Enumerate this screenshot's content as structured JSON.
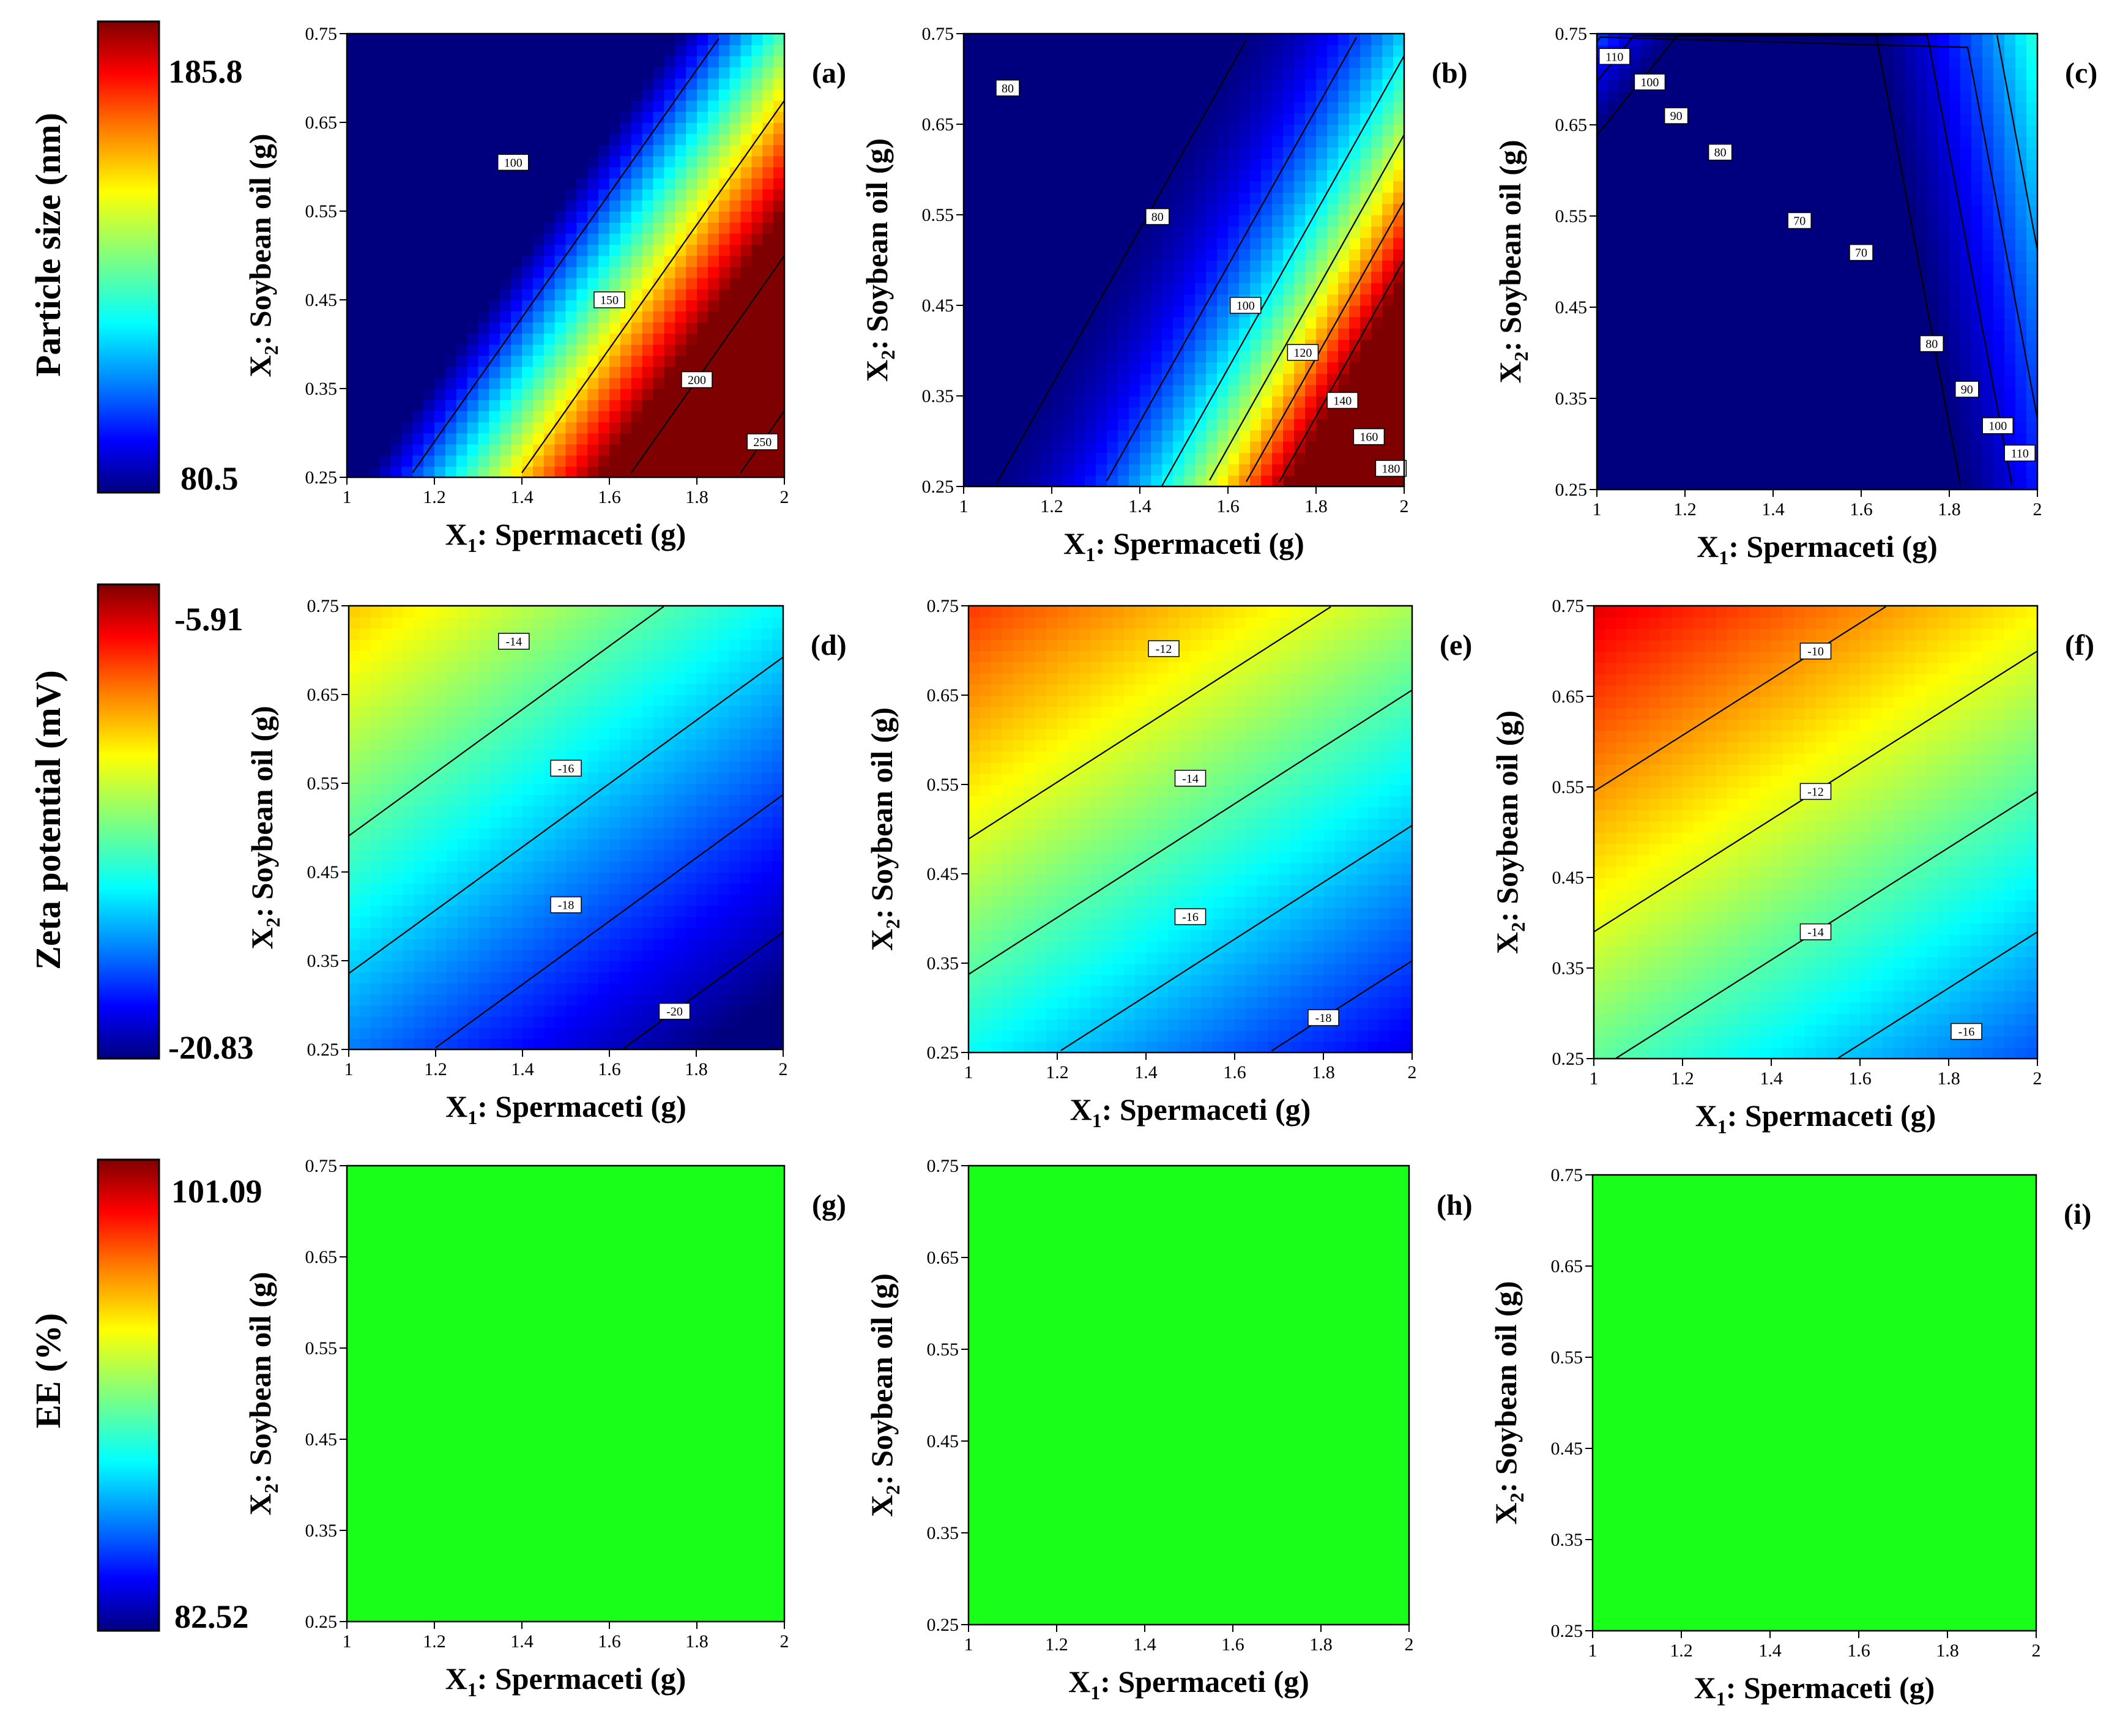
{
  "figure": {
    "x_label_prefix": "X",
    "x_label_sub": "1",
    "x_label_text": ": Spermaceti (g)",
    "y_label_prefix": "X",
    "y_label_sub": "2",
    "y_label_text": ": Soybean oil (g)",
    "x_ticks": [
      "1",
      "1.2",
      "1.4",
      "1.6",
      "1.8",
      "2"
    ],
    "y_ticks": [
      "0.25",
      "0.35",
      "0.45",
      "0.55",
      "0.65",
      "0.75"
    ]
  },
  "rows": [
    {
      "label": "Particle size (nm)",
      "scale_max": "185.8",
      "scale_min": "80.5"
    },
    {
      "label": "Zeta potential (mV)",
      "scale_max": "-5.91",
      "scale_min": "-20.83"
    },
    {
      "label": "EE (%)",
      "scale_max": "101.09",
      "scale_min": "82.52"
    }
  ],
  "colors": {
    "jet": [
      "#00007f",
      "#0000ff",
      "#007fff",
      "#00ffff",
      "#7fff7f",
      "#ffff00",
      "#ff7f00",
      "#ff0000",
      "#7f0000"
    ],
    "ee_fill": "#1aff1a"
  },
  "chart_data": [
    {
      "type": "heatmap",
      "panel": "(a)",
      "xlim": [
        1,
        2
      ],
      "ylim": [
        0.25,
        0.75
      ],
      "model": "ps_a",
      "contours": [
        {
          "label": "100",
          "level": 100,
          "at": [
            1.38,
            0.605
          ]
        },
        {
          "label": "150",
          "level": 150,
          "at": [
            1.6,
            0.45
          ]
        },
        {
          "label": "200",
          "level": 200,
          "at": [
            1.8,
            0.36
          ]
        },
        {
          "label": "250",
          "level": 250,
          "at": [
            1.95,
            0.29
          ]
        }
      ]
    },
    {
      "type": "heatmap",
      "panel": "(b)",
      "xlim": [
        1,
        2
      ],
      "ylim": [
        0.25,
        0.75
      ],
      "model": "ps_b",
      "contours": [
        {
          "label": "80",
          "level": 79,
          "at": [
            1.1,
            0.69
          ]
        },
        {
          "label": "80",
          "level": 81,
          "at": [
            1.44,
            0.548
          ]
        },
        {
          "label": "100",
          "level": 100,
          "at": [
            1.64,
            0.45
          ]
        },
        {
          "label": "120",
          "level": 120,
          "at": [
            1.77,
            0.398
          ]
        },
        {
          "label": "140",
          "level": 140,
          "at": [
            1.86,
            0.345
          ]
        },
        {
          "label": "160",
          "level": 160,
          "at": [
            1.92,
            0.305
          ]
        },
        {
          "label": "180",
          "level": 180,
          "at": [
            1.97,
            0.27
          ]
        }
      ]
    },
    {
      "type": "heatmap",
      "panel": "(c)",
      "xlim": [
        1,
        2
      ],
      "ylim": [
        0.25,
        0.75
      ],
      "model": "ps_c",
      "contours": [
        {
          "label": "110",
          "level": 110,
          "at": [
            1.04,
            0.725
          ]
        },
        {
          "label": "100",
          "level": 100,
          "at": [
            1.12,
            0.697
          ]
        },
        {
          "label": "90",
          "level": 90,
          "at": [
            1.18,
            0.66
          ]
        },
        {
          "label": "80",
          "level": 80,
          "at": [
            1.28,
            0.62
          ]
        },
        {
          "label": "70",
          "level": 70,
          "at": [
            1.46,
            0.545
          ]
        },
        {
          "label": "70",
          "level": 70,
          "at": [
            1.6,
            0.51
          ]
        },
        {
          "label": "80",
          "level": 80,
          "at": [
            1.76,
            0.41
          ]
        },
        {
          "label": "90",
          "level": 90,
          "at": [
            1.84,
            0.36
          ]
        },
        {
          "label": "100",
          "level": 100,
          "at": [
            1.91,
            0.32
          ]
        },
        {
          "label": "110",
          "level": 110,
          "at": [
            1.96,
            0.29
          ]
        }
      ]
    },
    {
      "type": "heatmap",
      "panel": "(d)",
      "xlim": [
        1,
        2
      ],
      "ylim": [
        0.25,
        0.75
      ],
      "model": "zp_d",
      "contours": [
        {
          "label": "-14",
          "level": -14,
          "at": [
            1.38,
            0.71
          ]
        },
        {
          "label": "-16",
          "level": -16,
          "at": [
            1.5,
            0.567
          ]
        },
        {
          "label": "-18",
          "level": -18,
          "at": [
            1.5,
            0.413
          ]
        },
        {
          "label": "-20",
          "level": -20,
          "at": [
            1.75,
            0.293
          ]
        }
      ]
    },
    {
      "type": "heatmap",
      "panel": "(e)",
      "xlim": [
        1,
        2
      ],
      "ylim": [
        0.25,
        0.75
      ],
      "model": "zp_e",
      "contours": [
        {
          "label": "-12",
          "level": -12,
          "at": [
            1.44,
            0.702
          ]
        },
        {
          "label": "-14",
          "level": -14,
          "at": [
            1.5,
            0.557
          ]
        },
        {
          "label": "-16",
          "level": -16,
          "at": [
            1.5,
            0.402
          ]
        },
        {
          "label": "-18",
          "level": -18,
          "at": [
            1.8,
            0.289
          ]
        }
      ]
    },
    {
      "type": "heatmap",
      "panel": "(f)",
      "xlim": [
        1,
        2
      ],
      "ylim": [
        0.25,
        0.75
      ],
      "model": "zp_f",
      "contours": [
        {
          "label": "-10",
          "level": -10,
          "at": [
            1.5,
            0.7
          ]
        },
        {
          "label": "-12",
          "level": -12,
          "at": [
            1.5,
            0.545
          ]
        },
        {
          "label": "-14",
          "level": -14,
          "at": [
            1.5,
            0.39
          ]
        },
        {
          "label": "-16",
          "level": -16,
          "at": [
            1.84,
            0.28
          ]
        }
      ]
    },
    {
      "type": "heatmap",
      "panel": "(g)",
      "xlim": [
        1,
        2
      ],
      "ylim": [
        0.25,
        0.75
      ],
      "model": "ee",
      "contours": []
    },
    {
      "type": "heatmap",
      "panel": "(h)",
      "xlim": [
        1,
        2
      ],
      "ylim": [
        0.25,
        0.75
      ],
      "model": "ee",
      "contours": []
    },
    {
      "type": "heatmap",
      "panel": "(i)",
      "xlim": [
        1,
        2
      ],
      "ylim": [
        0.25,
        0.75
      ],
      "model": "ee",
      "contours": []
    }
  ]
}
